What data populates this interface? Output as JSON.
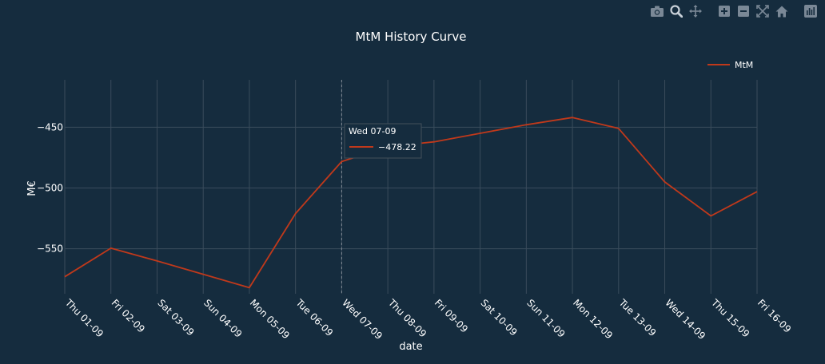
{
  "toolbar": {
    "icons": [
      "camera-icon",
      "zoom-icon",
      "pan-icon",
      "zoom-in-icon",
      "zoom-out-icon",
      "autoscale-icon",
      "reset-axes-icon",
      "plotly-logo-icon"
    ]
  },
  "chart_data": {
    "type": "line",
    "title": "MtM History Curve",
    "xlabel": "date",
    "ylabel": "M€",
    "categories": [
      "Thu 01-09",
      "Fri 02-09",
      "Sat 03-09",
      "Sun 04-09",
      "Mon 05-09",
      "Tue 06-09",
      "Wed 07-09",
      "Thu 08-09",
      "Fri 09-09",
      "Sat 10-09",
      "Sun 11-09",
      "Mon 12-09",
      "Tue 13-09",
      "Wed 14-09",
      "Thu 15-09",
      "Fri 16-09"
    ],
    "series": [
      {
        "name": "MtM",
        "color": "#c0391b",
        "values": [
          -573,
          -549.5,
          -560,
          -571,
          -582,
          -521,
          -478.22,
          -466,
          -462,
          -455,
          -448,
          -442,
          -451,
          -495,
          -523,
          -503
        ]
      }
    ],
    "ylim": [
      -587,
      -411
    ],
    "yticks": [
      -550,
      -500,
      -450
    ],
    "ytick_labels": [
      "−550",
      "−500",
      "−450"
    ],
    "grid": true,
    "legend": {
      "position": "top-right",
      "entries": [
        "MtM"
      ]
    },
    "hover": {
      "category_index": 6,
      "label": "Wed 07-09",
      "value_text": "−478.22"
    },
    "colors": {
      "background": "#152c3e",
      "grid": "#3a4c5c",
      "text": "#ffffff",
      "hover_line": "#808a94"
    }
  }
}
